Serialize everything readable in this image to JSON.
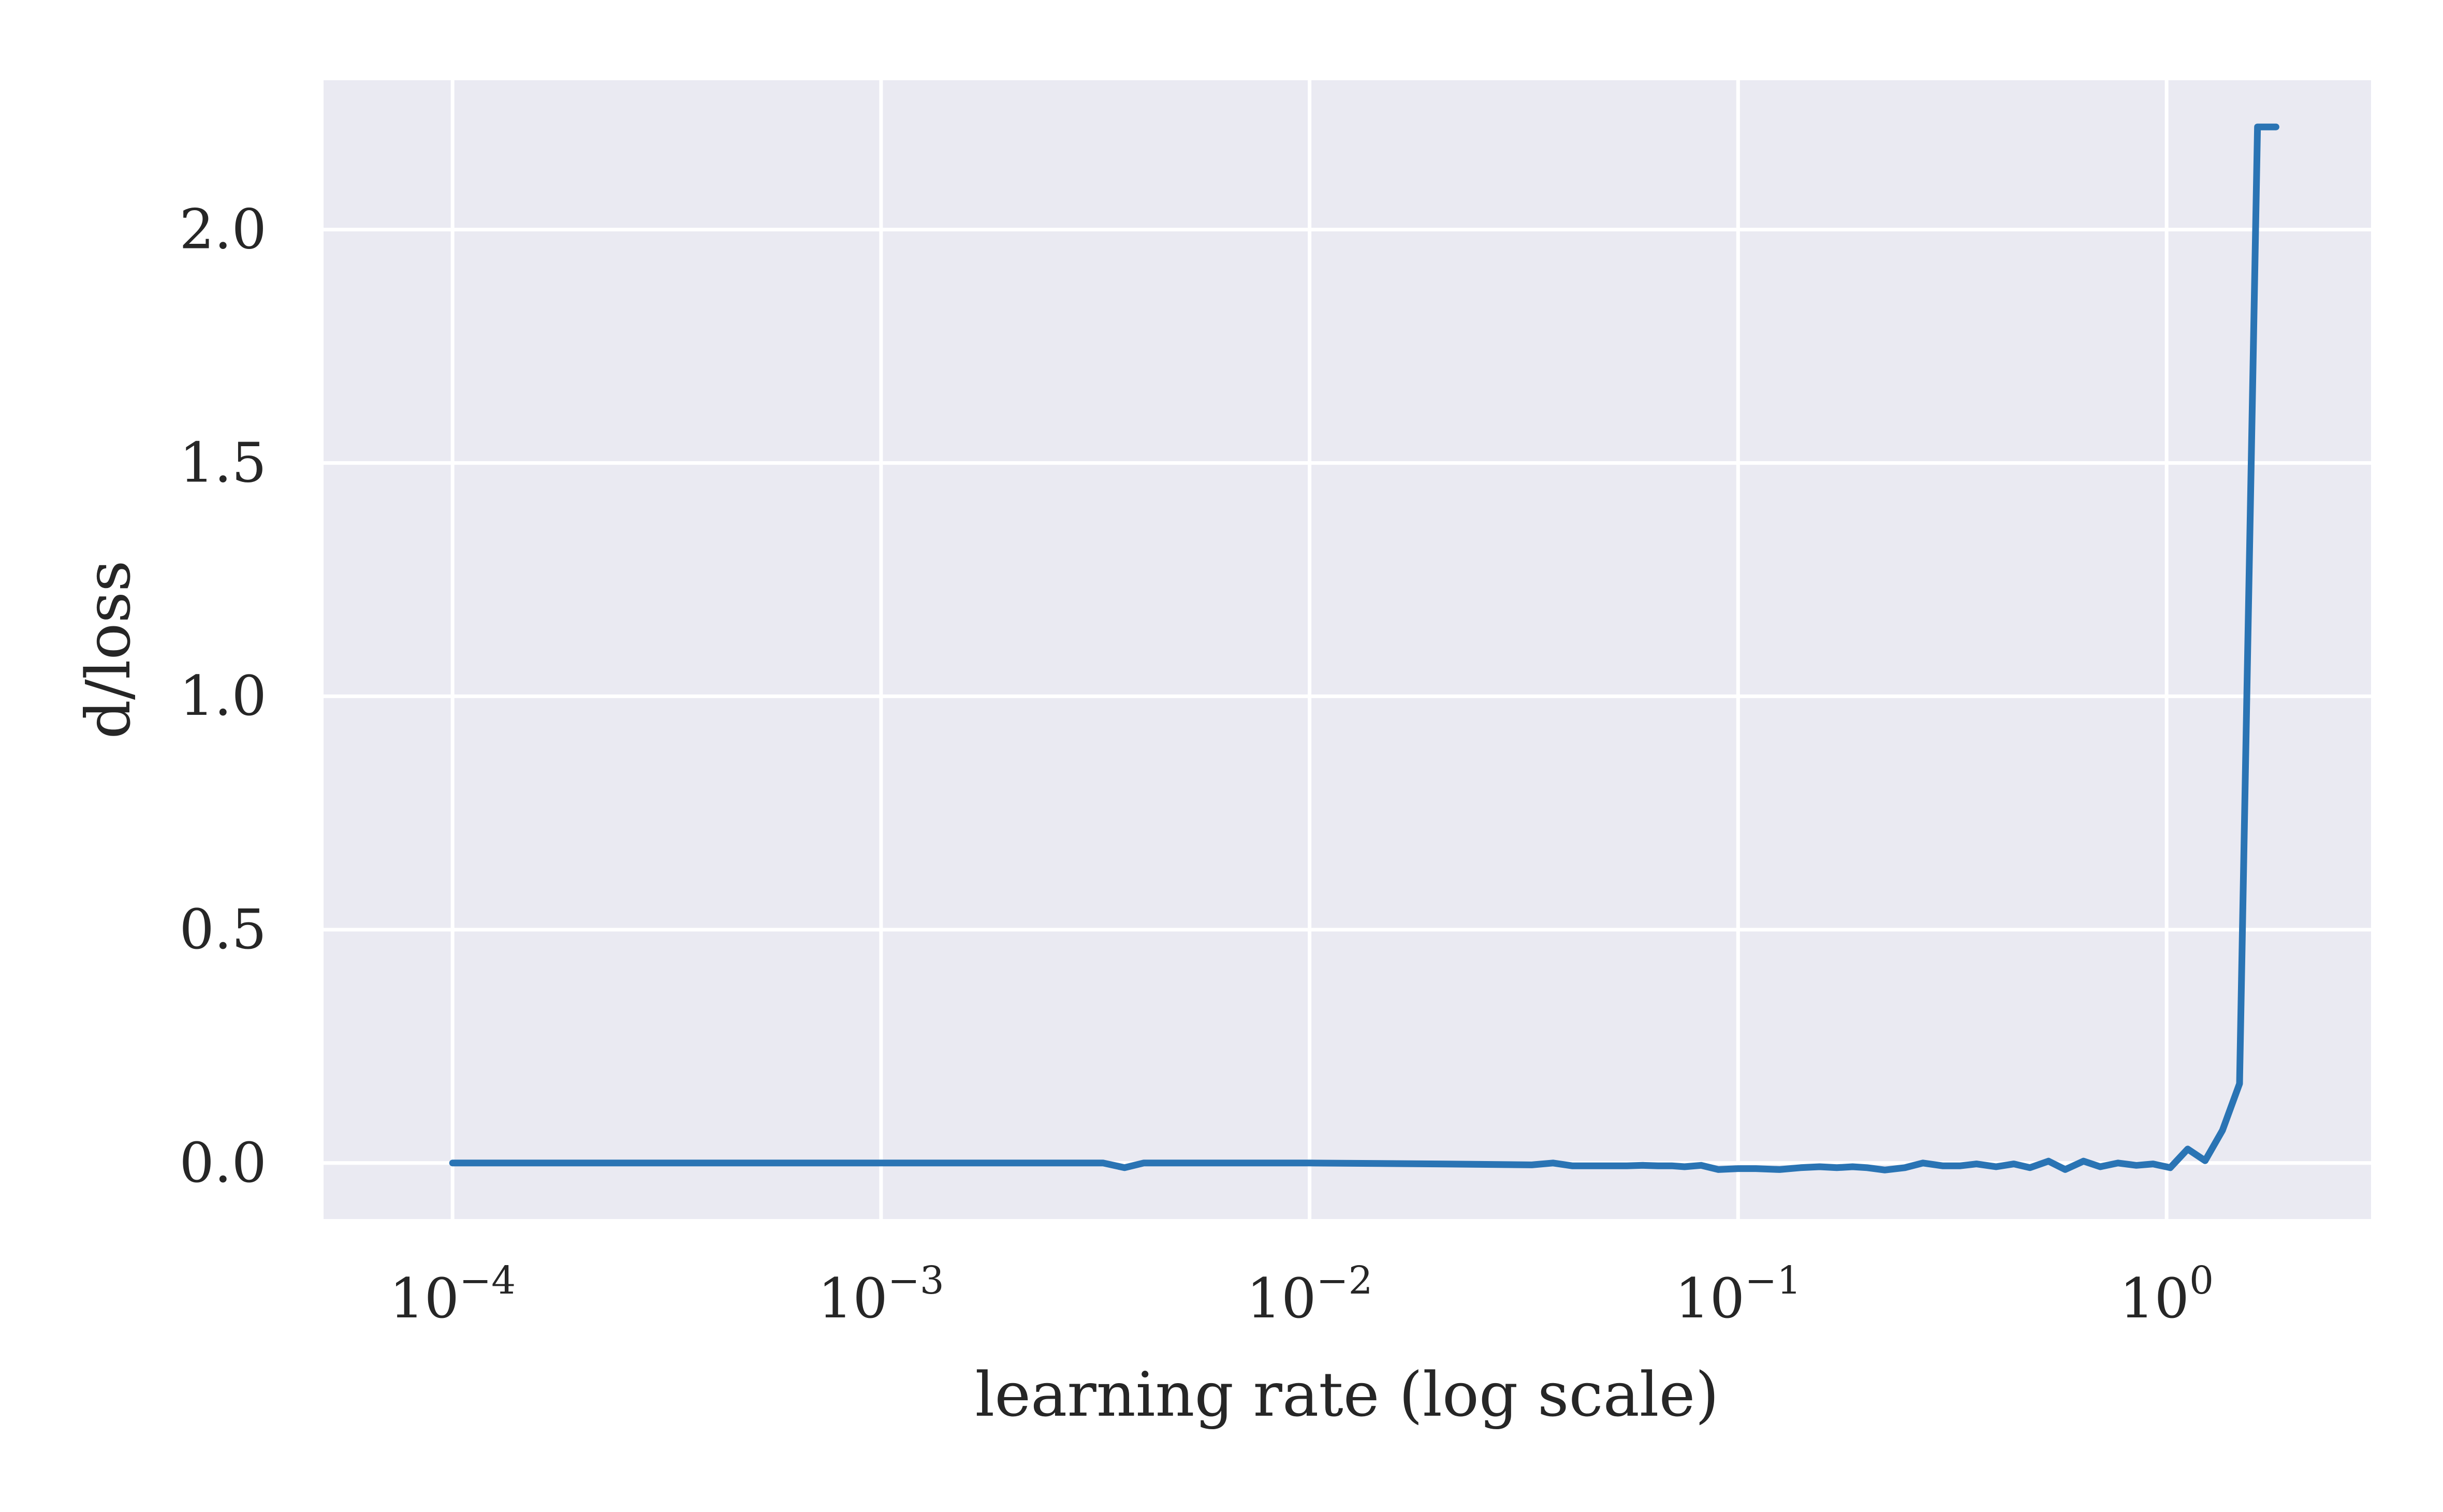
{
  "chart_data": {
    "type": "line",
    "xscale": "log",
    "xlabel": "learning rate (log scale)",
    "ylabel": "d/loss",
    "xlim": [
      5e-05,
      3.0
    ],
    "ylim": [
      -0.12,
      2.32
    ],
    "grid": true,
    "x_ticks": [
      {
        "value": 0.0001,
        "base": "10",
        "exp": "−4"
      },
      {
        "value": 0.001,
        "base": "10",
        "exp": "−3"
      },
      {
        "value": 0.01,
        "base": "10",
        "exp": "−2"
      },
      {
        "value": 0.1,
        "base": "10",
        "exp": "−1"
      },
      {
        "value": 1,
        "base": "10",
        "exp": "0"
      }
    ],
    "y_ticks": [
      {
        "value": 0.0,
        "label": "0.0"
      },
      {
        "value": 0.5,
        "label": "0.5"
      },
      {
        "value": 1.0,
        "label": "1.0"
      },
      {
        "value": 1.5,
        "label": "1.5"
      },
      {
        "value": 2.0,
        "label": "2.0"
      }
    ],
    "series": [
      {
        "color": "#2a74b4",
        "x": [
          0.0001,
          0.0002,
          0.0005,
          0.001,
          0.002,
          0.0033,
          0.0037,
          0.0041,
          0.0045,
          0.005,
          0.0056,
          0.007,
          0.01,
          0.02,
          0.033,
          0.037,
          0.041,
          0.045,
          0.05,
          0.055,
          0.06,
          0.065,
          0.07,
          0.075,
          0.082,
          0.09,
          0.1,
          0.11,
          0.125,
          0.14,
          0.155,
          0.17,
          0.185,
          0.2,
          0.22,
          0.245,
          0.27,
          0.3,
          0.33,
          0.36,
          0.4,
          0.44,
          0.48,
          0.53,
          0.58,
          0.64,
          0.7,
          0.77,
          0.85,
          0.93,
          1.02,
          1.12,
          1.23,
          1.35,
          1.48,
          1.63,
          1.8
        ],
        "y": [
          0.0,
          0.0,
          0.0,
          0.0,
          0.0,
          0.0,
          -0.01,
          0.0,
          0.0,
          0.0,
          0.0,
          0.0,
          0.0,
          -0.002,
          -0.004,
          0.0,
          -0.006,
          -0.006,
          -0.006,
          -0.006,
          -0.005,
          -0.006,
          -0.006,
          -0.008,
          -0.005,
          -0.014,
          -0.012,
          -0.012,
          -0.014,
          -0.01,
          -0.008,
          -0.01,
          -0.008,
          -0.01,
          -0.015,
          -0.01,
          0.0,
          -0.006,
          -0.006,
          -0.002,
          -0.008,
          -0.002,
          -0.01,
          0.004,
          -0.014,
          0.004,
          -0.008,
          0.0,
          -0.005,
          -0.002,
          -0.01,
          0.03,
          0.005,
          0.07,
          0.17,
          2.22,
          2.22
        ]
      }
    ]
  }
}
